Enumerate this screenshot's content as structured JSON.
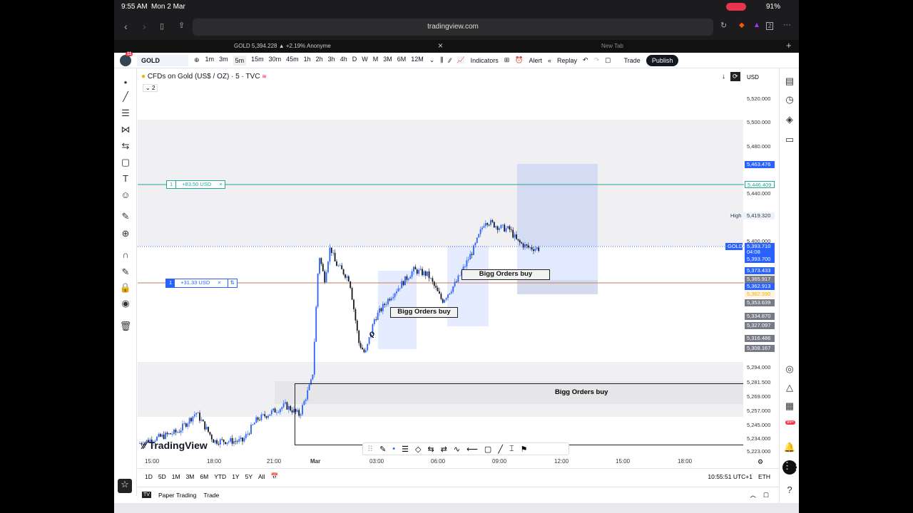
{
  "status": {
    "time": "9:55 AM",
    "date": "Mon 2 Mar",
    "battery": "91%"
  },
  "browser": {
    "url": "tradingview.com",
    "tab_count": "2",
    "tabs": [
      {
        "label": "GOLD 5,394.228 ▲ +2.19% Anonyme"
      },
      {
        "label": "New Tab"
      }
    ]
  },
  "toolbar": {
    "notifications": "11",
    "symbol": "GOLD",
    "timeframes": [
      "1m",
      "3m",
      "5m",
      "15m",
      "30m",
      "45m",
      "1h",
      "2h",
      "3h",
      "4h",
      "D",
      "W",
      "M",
      "3M",
      "6M",
      "12M"
    ],
    "active_timeframe": "5m",
    "indicators": "Indicators",
    "alert": "Alert",
    "replay": "Replay",
    "trade": "Trade",
    "publish": "Publish"
  },
  "chart": {
    "title": "CFDs on Gold (US$ / OZ) · 5 · TVC",
    "indicator_count": "2",
    "currency": "USD",
    "price_ticks": [
      "5,520.000",
      "5,500.000",
      "5,480.000",
      "5,440.000",
      "5,400.000",
      "5,294.000",
      "5,281.500",
      "5,269.000",
      "5,257.000",
      "5,245.000",
      "5,234.000",
      "5,223.000"
    ],
    "price_labels": {
      "tp": "5,463.476",
      "green": "5,446.409",
      "high_label": "High",
      "high": "5,419.320",
      "gold": "GOLD",
      "last": "5,393.710",
      "countdown": "04:08",
      "bid": "5,393.700",
      "l1": "5,373.433",
      "l2": "5,365.917",
      "l3": "5,362.913",
      "l4": "5,362.390",
      "l5": "5,353.639",
      "l6": "5,334.870",
      "l7": "5,327.097",
      "l8": "5,316.486",
      "l9": "5,308.167"
    },
    "time_ticks": [
      "15:00",
      "18:00",
      "21:00",
      "Mar",
      "03:00",
      "06:00",
      "09:00",
      "12:00",
      "15:00",
      "18:00"
    ],
    "positions": [
      {
        "qty": "1",
        "pnl": "+83.50 USD"
      },
      {
        "qty": "1",
        "pnl": "+31.33 USD"
      }
    ],
    "annotations": [
      "Bigg Orders buy",
      "Bigg Orders buy",
      "Bigg Orders buy"
    ],
    "marker": "Q",
    "logo": "TradingView",
    "colors": {
      "up": "#2962ff",
      "down": "#131722",
      "accent": "#2962ff",
      "green": "#26a69a"
    }
  },
  "bottom": {
    "ranges": [
      "1D",
      "5D",
      "1M",
      "3M",
      "6M",
      "YTD",
      "1Y",
      "5Y",
      "All"
    ],
    "clock": "10:55:51 UTC+1",
    "session": "ETH",
    "panel_tabs": [
      "Paper Trading",
      "Trade"
    ]
  },
  "right": {
    "badge": "99+",
    "alert_badge": "1"
  }
}
